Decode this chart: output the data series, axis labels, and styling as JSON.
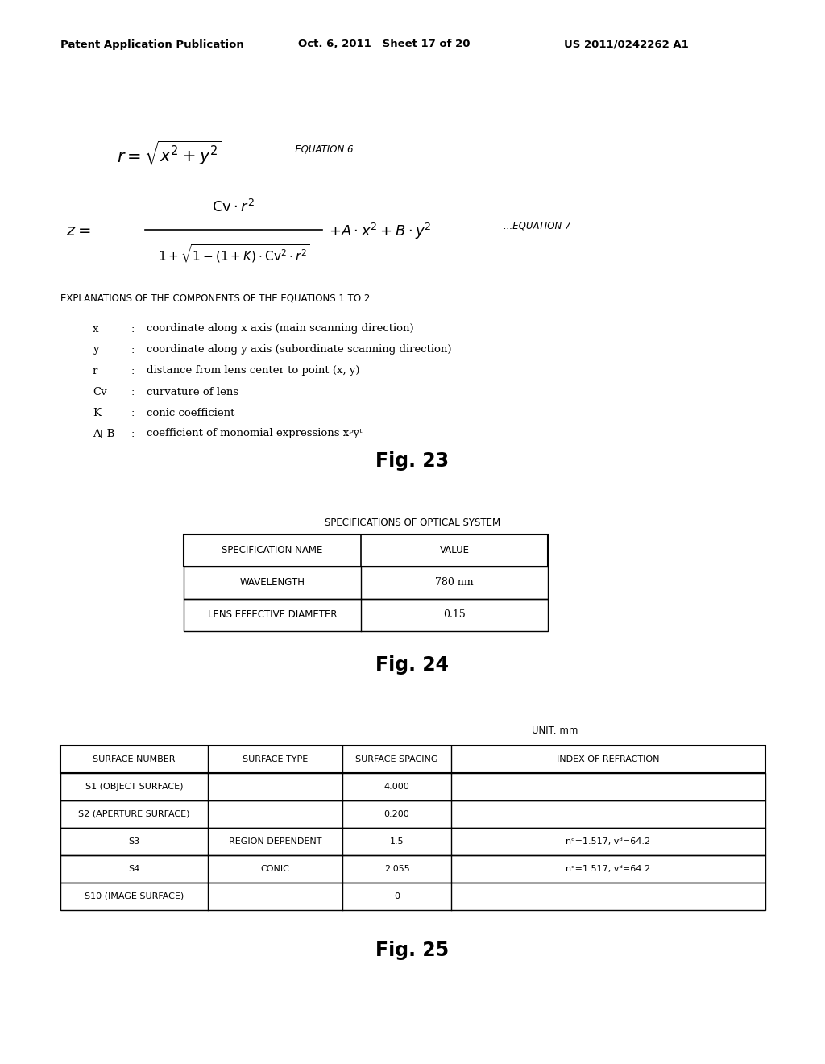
{
  "bg_color": "#ffffff",
  "header_left": "Patent Application Publication",
  "header_mid": "Oct. 6, 2011   Sheet 17 of 20",
  "header_right": "US 2011/0242262 A1",
  "eq6_label": "...EQUATION 6",
  "eq7_label": "...EQUATION 7",
  "explanations_title": "EXPLANATIONS OF THE COMPONENTS OF THE EQUATIONS 1 TO 2",
  "explanation_items": [
    [
      "x",
      "coordinate along x axis (main scanning direction)"
    ],
    [
      "y",
      "coordinate along y axis (subordinate scanning direction)"
    ],
    [
      "r",
      "distance from lens center to point (x, y)"
    ],
    [
      "Cv",
      "curvature of lens"
    ],
    [
      "K",
      "conic coefficient"
    ],
    [
      "A∾B",
      "coefficient of monomial expressions xᵖyᵗ"
    ]
  ],
  "fig23_label": "Fig. 23",
  "fig24_label": "Fig. 24",
  "fig25_label": "Fig. 25",
  "spec_title": "SPECIFICATIONS OF OPTICAL SYSTEM",
  "spec_headers": [
    "SPECIFICATION NAME",
    "VALUE"
  ],
  "spec_rows": [
    [
      "WAVELENGTH",
      "780 nm"
    ],
    [
      "LENS EFFECTIVE DIAMETER",
      "0.15"
    ]
  ],
  "unit_label": "UNIT: mm",
  "surface_headers": [
    "SURFACE NUMBER",
    "SURFACE TYPE",
    "SURFACE SPACING",
    "INDEX OF REFRACTION"
  ],
  "surface_rows": [
    [
      "S1 (OBJECT SURFACE)",
      "",
      "4.000",
      ""
    ],
    [
      "S2 (APERTURE SURFACE)",
      "",
      "0.200",
      ""
    ],
    [
      "S3",
      "REGION DEPENDENT",
      "1.5",
      "nᵈ=1.517, vᵈ=64.2"
    ],
    [
      "S4",
      "CONIC",
      "2.055",
      "nᵈ=1.517, vᵈ=64.2"
    ],
    [
      "S10 (IMAGE SURFACE)",
      "",
      "0",
      ""
    ]
  ]
}
